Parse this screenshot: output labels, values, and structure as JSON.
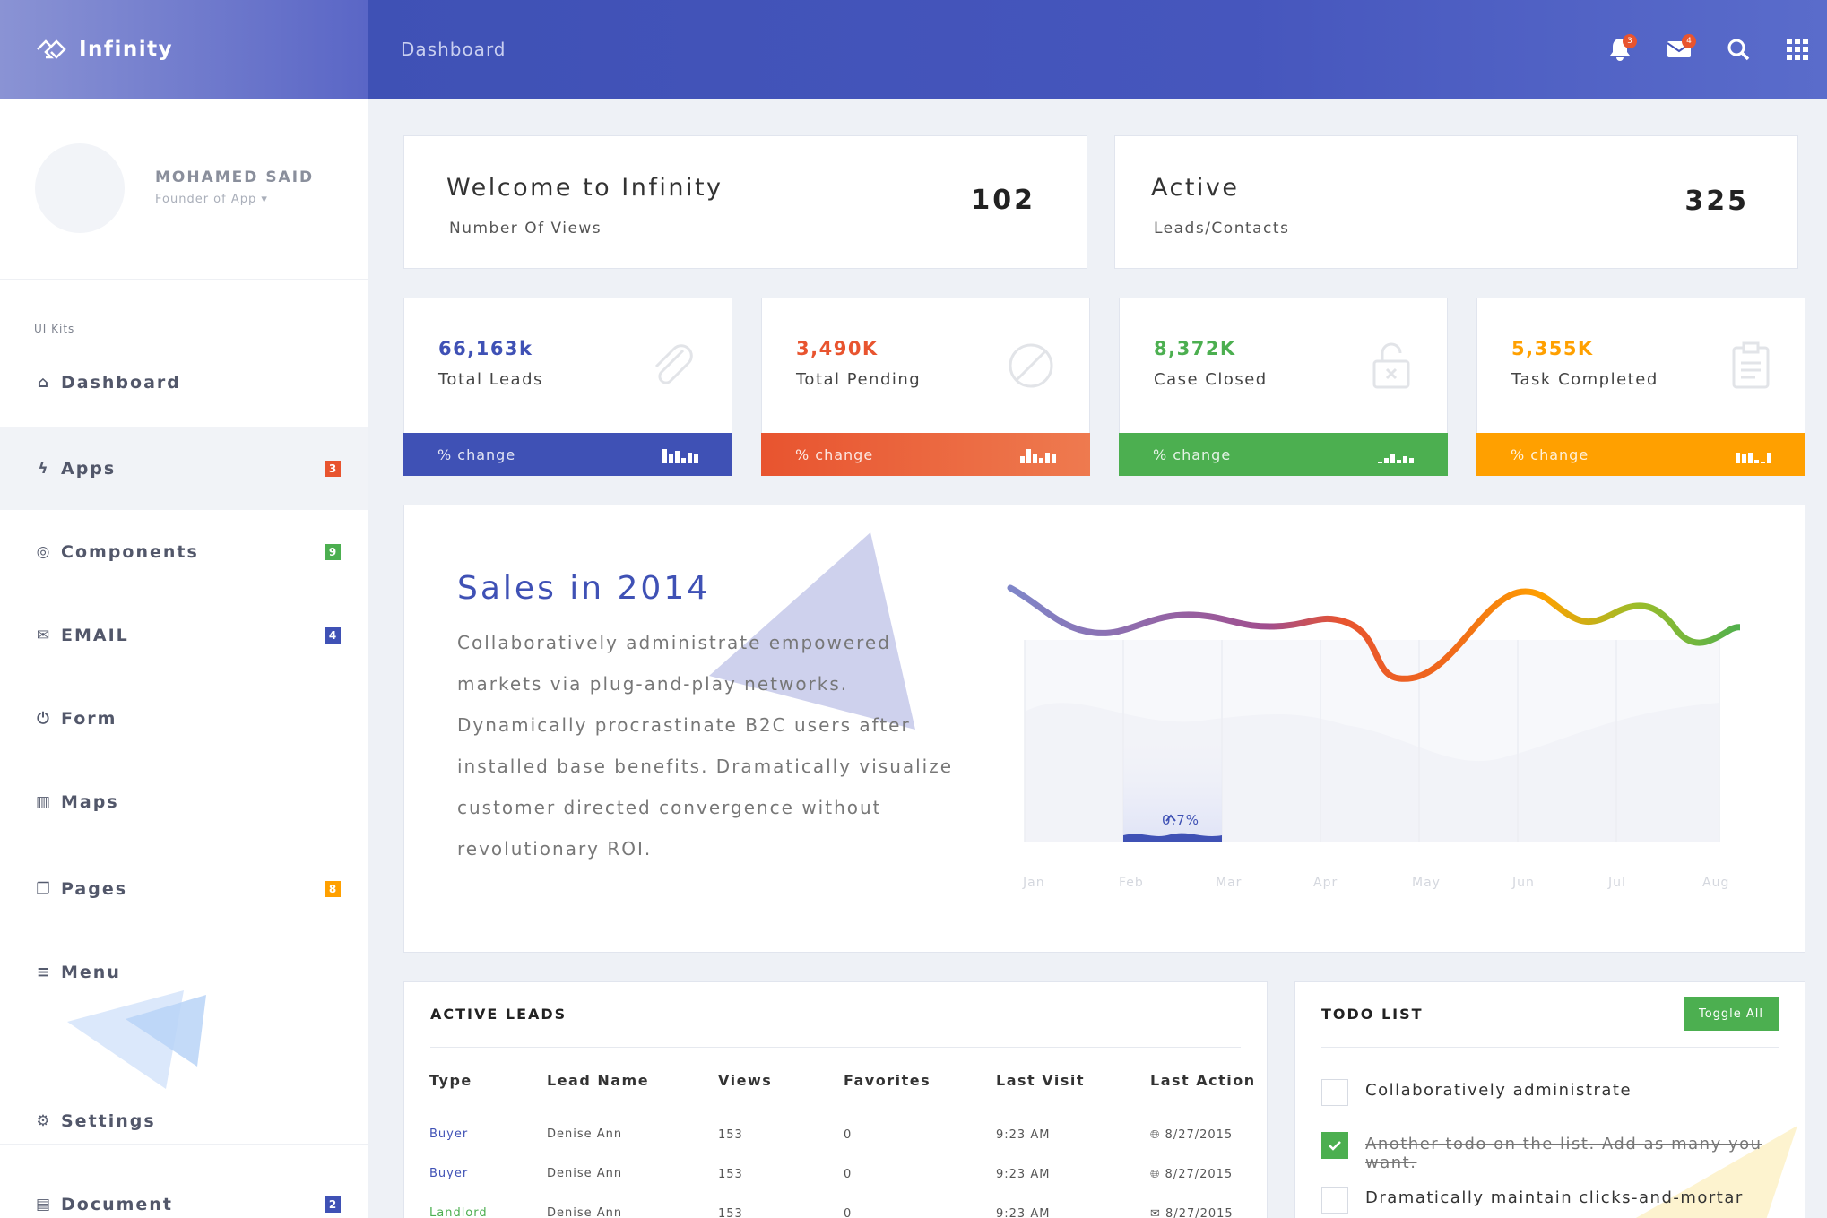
{
  "app": {
    "name": "Infinity"
  },
  "header": {
    "breadcrumb": "Dashboard",
    "notifications_count": "3",
    "messages_count": "4"
  },
  "user": {
    "name": "MOHAMED SAID",
    "role": "Founder of App"
  },
  "sidebar": {
    "section_label": "UI Kits",
    "items": [
      {
        "label": "Dashboard",
        "icon": "home-icon",
        "badge": null
      },
      {
        "label": "Apps",
        "icon": "bolt-icon",
        "badge": "3",
        "badge_color": "#e8542f"
      },
      {
        "label": "Components",
        "icon": "lifebuoy-icon",
        "badge": "9",
        "badge_color": "#4caf50"
      },
      {
        "label": "EMAIL",
        "icon": "envelope-icon",
        "badge": "4",
        "badge_color": "#3f51b5"
      },
      {
        "label": "Form",
        "icon": "power-icon",
        "badge": null
      },
      {
        "label": "Maps",
        "icon": "map-icon",
        "badge": null
      },
      {
        "label": "Pages",
        "icon": "copy-icon",
        "badge": "8",
        "badge_color": "#ffa000"
      },
      {
        "label": "Menu",
        "icon": "list-icon",
        "badge": null
      },
      {
        "label": "Settings",
        "icon": "gear-icon",
        "badge": null
      },
      {
        "label": "Document",
        "icon": "document-icon",
        "badge": "2",
        "badge_color": "#3f51b5"
      }
    ]
  },
  "welcome": {
    "title": "Welcome to Infinity",
    "subtitle": "Number Of Views",
    "value": "102"
  },
  "active": {
    "title": "Active",
    "subtitle": "Leads/Contacts",
    "value": "325"
  },
  "stats": [
    {
      "value": "66,163k",
      "label": "Total Leads",
      "footer": "% change",
      "color": "#3f51b5",
      "icon": "paperclip-icon"
    },
    {
      "value": "3,490K",
      "label": "Total Pending",
      "footer": "% change",
      "color": "#e8542f",
      "icon": "ban-icon"
    },
    {
      "value": "8,372K",
      "label": "Case Closed",
      "footer": "% change",
      "color": "#4caf50",
      "icon": "unlock-icon"
    },
    {
      "value": "5,355K",
      "label": "Task Completed",
      "footer": "% change",
      "color": "#ffa000",
      "icon": "clipboard-icon"
    }
  ],
  "sales": {
    "title": "Sales in 2014",
    "text": "Collaboratively administrate empowered markets via plug-and-play networks. Dynamically procrastinate B2C users after installed base benefits. Dramatically visualize customer directed convergence without revolutionary ROI.",
    "highlight": "0.7%",
    "months": [
      "Jan",
      "Feb",
      "Mar",
      "Apr",
      "May",
      "Jun",
      "Jul",
      "Aug"
    ]
  },
  "leads": {
    "title": "ACTIVE LEADS",
    "columns": [
      "Type",
      "Lead Name",
      "Views",
      "Favorites",
      "Last Visit",
      "Last Action"
    ],
    "rows": [
      {
        "type": "Buyer",
        "type_color": "#3f51b5",
        "name": "Denise Ann",
        "views": "153",
        "favorites": "0",
        "last_visit": "9:23 AM",
        "last_action": "8/27/2015",
        "action_icon": "globe-icon"
      },
      {
        "type": "Buyer",
        "type_color": "#3f51b5",
        "name": "Denise Ann",
        "views": "153",
        "favorites": "0",
        "last_visit": "9:23 AM",
        "last_action": "8/27/2015",
        "action_icon": "globe-icon"
      },
      {
        "type": "Landlord",
        "type_color": "#4caf50",
        "name": "Denise Ann",
        "views": "153",
        "favorites": "0",
        "last_visit": "9:23 AM",
        "last_action": "8/27/2015",
        "action_icon": "envelope-icon"
      }
    ]
  },
  "todo": {
    "title": "TODO LIST",
    "toggle_label": "Toggle All",
    "items": [
      {
        "text": "Collaboratively administrate",
        "done": false
      },
      {
        "text": "Another todo on the list. Add as many you want.",
        "done": true
      },
      {
        "text": "Dramatically maintain clicks-and-mortar",
        "done": false
      }
    ]
  }
}
